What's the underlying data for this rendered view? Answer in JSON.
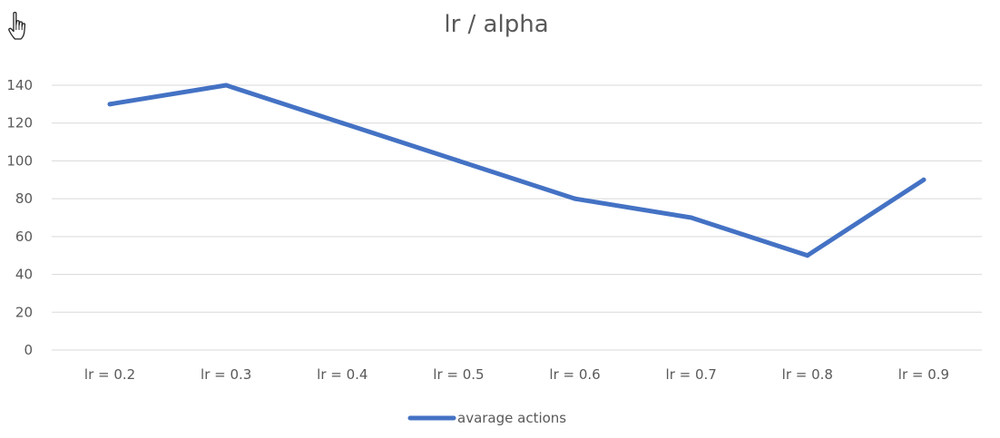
{
  "chart_data": {
    "type": "line",
    "title": "lr / alpha",
    "xlabel": "",
    "ylabel": "",
    "categories": [
      "lr = 0.2",
      "lr = 0.3",
      "lr  = 0.4",
      "lr = 0.5",
      "lr = 0.6",
      "lr = 0.7",
      "lr  = 0.8",
      "lr = 0.9"
    ],
    "series": [
      {
        "name": "avarage actions",
        "values": [
          130,
          140,
          120,
          100,
          80,
          70,
          50,
          90
        ],
        "color": "#4472C4"
      }
    ],
    "ylim": [
      0,
      140
    ],
    "yticks": [
      "0",
      "20",
      "40",
      "60",
      "80",
      "100",
      "120",
      "140"
    ],
    "grid": true,
    "gridColor": "#D9D9D9",
    "legend": "bottom"
  },
  "cursor": {
    "icon": "hand-pointer-icon"
  }
}
